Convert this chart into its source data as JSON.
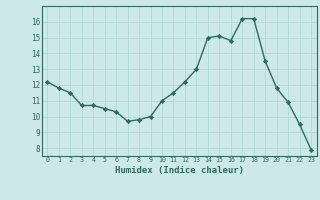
{
  "x": [
    0,
    1,
    2,
    3,
    4,
    5,
    6,
    7,
    8,
    9,
    10,
    11,
    12,
    13,
    14,
    15,
    16,
    17,
    18,
    19,
    20,
    21,
    22,
    23
  ],
  "y": [
    12.2,
    11.8,
    11.5,
    10.7,
    10.7,
    10.5,
    10.3,
    9.7,
    9.8,
    10.0,
    11.0,
    11.5,
    12.2,
    13.0,
    15.0,
    15.1,
    14.8,
    16.2,
    16.2,
    13.5,
    11.8,
    10.9,
    9.5,
    7.9
  ],
  "xlabel": "Humidex (Indice chaleur)",
  "ylabel": "",
  "ylim": [
    7.5,
    17.0
  ],
  "yticks": [
    8,
    9,
    10,
    11,
    12,
    13,
    14,
    15,
    16
  ],
  "xlim": [
    -0.5,
    23.5
  ],
  "xticks": [
    0,
    1,
    2,
    3,
    4,
    5,
    6,
    7,
    8,
    9,
    10,
    11,
    12,
    13,
    14,
    15,
    16,
    17,
    18,
    19,
    20,
    21,
    22,
    23
  ],
  "line_color": "#2e6b5e",
  "marker_color": "#2e6b5e",
  "bg_color": "#cde8e8",
  "grid_color": "#b0d8d8",
  "label_color": "#2e6b5e",
  "tick_color": "#2e6b5e"
}
